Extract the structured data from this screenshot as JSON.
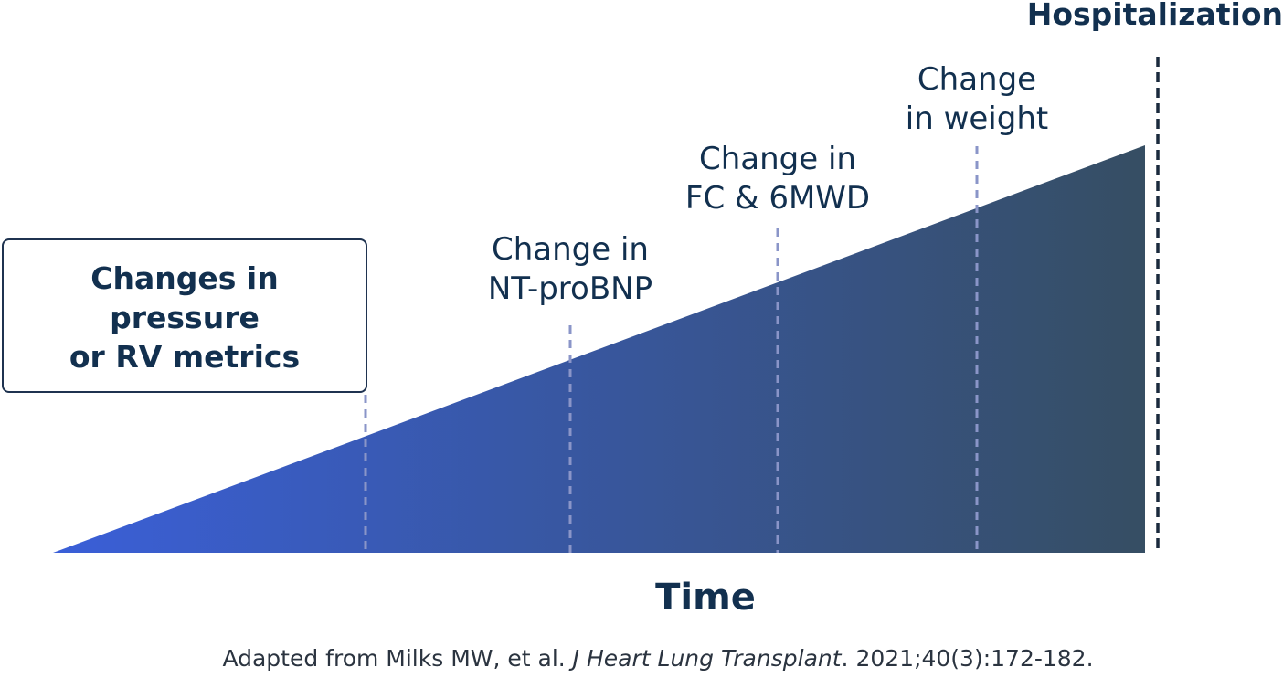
{
  "diagram": {
    "hospitalization_label": "Hospitalization",
    "early_signal": [
      "Changes in",
      "pressure",
      "or RV metrics"
    ],
    "markers": [
      {
        "line1": "Change in",
        "line2": "NT-proBNP"
      },
      {
        "line1": "Change in",
        "line2": "FC & 6MWD"
      },
      {
        "line1": "Change",
        "line2": "in weight"
      }
    ],
    "x_axis_label": "Time",
    "colors": {
      "wedge_start": "#3a5fd8",
      "wedge_end": "#364e63",
      "text": "#12304f",
      "dash": "#8a95c8",
      "hospital_line": "#1a2a3d"
    }
  },
  "citation": {
    "prefix": "Adapted from Milks MW, et al. ",
    "journal": "J Heart Lung Transplant",
    "suffix": ". 2021;40(3):172-182."
  }
}
